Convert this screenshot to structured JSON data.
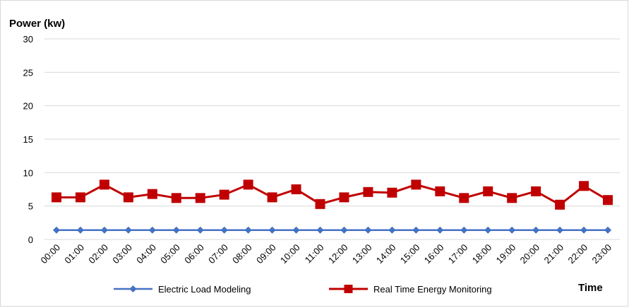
{
  "chart_data": {
    "type": "line",
    "ylabel": "Power (kw)",
    "xlabel": "Time",
    "ylim": [
      0,
      30
    ],
    "yticks": [
      0,
      5,
      10,
      15,
      20,
      25,
      30
    ],
    "grid": "horizontal",
    "legend_position": "bottom",
    "categories": [
      "00:00",
      "01:00",
      "02:00",
      "03:00",
      "04:00",
      "05:00",
      "06:00",
      "07:00",
      "08:00",
      "09:00",
      "10:00",
      "11:00",
      "12:00",
      "13:00",
      "14:00",
      "15:00",
      "16:00",
      "17:00",
      "18:00",
      "19:00",
      "20:00",
      "21:00",
      "22:00",
      "23:00"
    ],
    "series": [
      {
        "name": "Electric Load Modeling",
        "color": "#4472c4",
        "marker": "diamond",
        "values": [
          1.4,
          1.4,
          1.4,
          1.4,
          1.4,
          1.4,
          1.4,
          1.4,
          1.4,
          1.4,
          1.4,
          1.4,
          1.4,
          1.4,
          1.4,
          1.4,
          1.4,
          1.4,
          1.4,
          1.4,
          1.4,
          1.4,
          1.4,
          1.4
        ]
      },
      {
        "name": "Real Time Energy Monitoring",
        "color": "#c00000",
        "marker": "square",
        "values": [
          6.3,
          6.3,
          8.2,
          6.3,
          6.8,
          6.2,
          6.2,
          6.7,
          8.2,
          6.3,
          7.5,
          5.3,
          6.3,
          7.1,
          7.0,
          8.2,
          7.2,
          6.2,
          7.2,
          6.2,
          7.2,
          5.2,
          8.0,
          5.9
        ]
      }
    ]
  }
}
